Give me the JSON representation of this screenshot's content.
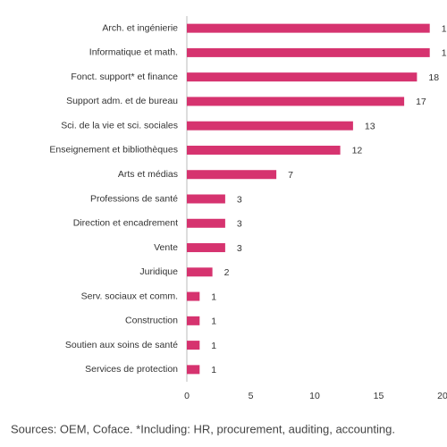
{
  "chart_data": {
    "type": "bar",
    "orientation": "horizontal",
    "categories": [
      "Arch. et ingénierie",
      "Informatique et math.",
      "Fonct. support* et finance",
      "Support adm. et de bureau",
      "Sci. de la vie et sci. sociales",
      "Enseignement et bibliothèques",
      "Arts et médias",
      "Professions de santé",
      "Direction et encadrement",
      "Vente",
      "Juridique",
      "Serv. sociaux et comm.",
      "Construction",
      "Soutien aux soins de santé",
      "Services de protection"
    ],
    "values": [
      19,
      19,
      18,
      17,
      13,
      12,
      7,
      3,
      3,
      3,
      2,
      1,
      1,
      1,
      1
    ],
    "color": "#d6336f",
    "xlim": [
      0,
      20
    ],
    "xticks": [
      0,
      5,
      10,
      15,
      20
    ],
    "note": "Sources: OEM, Coface. *Including: HR, procurement, auditing, accounting."
  }
}
